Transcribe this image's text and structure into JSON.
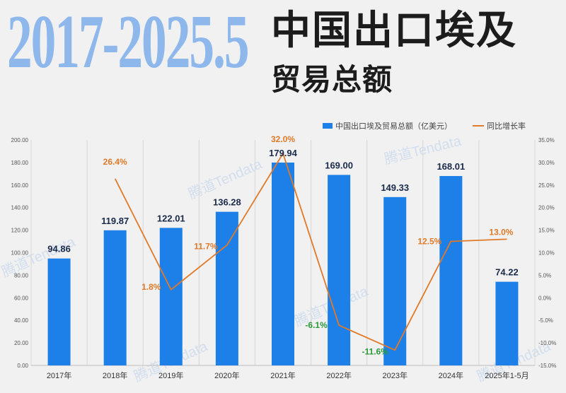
{
  "header": {
    "years": "2017-2025.5",
    "title_line1": "中国出口埃及",
    "title_line2": "贸易总额"
  },
  "watermark": "腾道Tendata",
  "colors": {
    "bar": "#1d7fe8",
    "line": "#e07a28",
    "positive_label": "#e07a28",
    "negative_label": "#2a9a3a",
    "value_label": "#1a2a4a",
    "axis_text": "#555555"
  },
  "chart_data": {
    "type": "bar",
    "categories": [
      "2017年",
      "2018年",
      "2019年",
      "2020年",
      "2021年",
      "2022年",
      "2023年",
      "2024年",
      "2025年1-5月"
    ],
    "series": [
      {
        "name": "中国出口埃及贸易总额（亿美元）",
        "type": "bar",
        "axis": "left",
        "values": [
          94.86,
          119.87,
          122.01,
          136.28,
          179.94,
          169.0,
          149.33,
          168.01,
          74.22
        ],
        "labels": [
          "94.86",
          "119.87",
          "122.01",
          "136.28",
          "179.94",
          "169.00",
          "149.33",
          "168.01",
          "74.22"
        ]
      },
      {
        "name": "同比增长率",
        "type": "line",
        "axis": "right",
        "values": [
          null,
          26.4,
          1.8,
          11.7,
          32.0,
          -6.1,
          -11.6,
          12.5,
          13.0
        ],
        "labels": [
          "",
          "26.4%",
          "1.8%",
          "11.7%",
          "32.0%",
          "-6.1%",
          "-11.6%",
          "12.5%",
          "13.0%"
        ]
      }
    ],
    "y_left": {
      "range": [
        0,
        200
      ],
      "ticks": [
        "0.00",
        "20.00",
        "40.00",
        "60.00",
        "80.00",
        "100.00",
        "120.00",
        "140.00",
        "160.00",
        "180.00",
        "200.00"
      ]
    },
    "y_right": {
      "range": [
        -15,
        35
      ],
      "ticks": [
        "-15.0%",
        "-10.0%",
        "-5.0%",
        "0.0%",
        "5.0%",
        "10.0%",
        "15.0%",
        "20.0%",
        "25.0%",
        "30.0%",
        "35.0%"
      ]
    },
    "legend": "top-right",
    "grid": "vertical"
  }
}
